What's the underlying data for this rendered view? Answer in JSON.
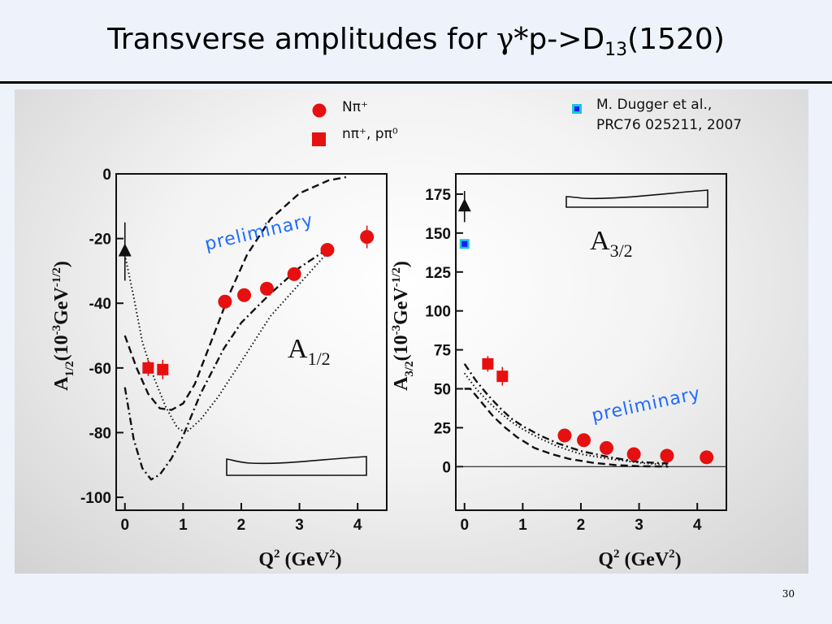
{
  "slide": {
    "title_prefix": "Transverse amplitudes for ",
    "title_gamma": "γ*",
    "title_mid": "p->D",
    "title_sub": "13",
    "title_suffix": "(1520)",
    "page_number": "30"
  },
  "legend": {
    "circle_label": "Nπ⁺",
    "square_label": "nπ⁺, pπ⁰",
    "ref_line1": "M. Dugger et al.,",
    "ref_line2": "PRC76 025211, 2007"
  },
  "colors": {
    "data_red": "#e61010",
    "photopoint_blue": "#1a1aff",
    "photopoint_cyan": "#19c8d8",
    "preliminary_blue": "#1f6bff"
  },
  "chart_data": [
    {
      "type": "scatter",
      "panel": "left",
      "amplitude_label": "A1/2",
      "ylabel": "A1/2(10^-3GeV^-1/2)",
      "xlabel": "Q2 (GeV2)",
      "xlim": [
        -0.15,
        4.5
      ],
      "ylim": [
        -104,
        0
      ],
      "xticks": [
        0,
        1,
        2,
        3,
        4
      ],
      "yticks": [
        0,
        -20,
        -40,
        -60,
        -80,
        -100
      ],
      "annotation": "preliminary",
      "series": [
        {
          "name": "Nπ⁺",
          "marker": "circle",
          "x": [
            1.72,
            2.05,
            2.44,
            2.91,
            3.48,
            4.16
          ],
          "y": [
            -39.5,
            -37.5,
            -35.5,
            -31,
            -23.5,
            -19.5
          ],
          "err": [
            0,
            0,
            0,
            0,
            0,
            3.5
          ]
        },
        {
          "name": "nπ⁺, pπ⁰",
          "marker": "square",
          "x": [
            0.4,
            0.65
          ],
          "y": [
            -60,
            -60.5
          ],
          "err": [
            2.5,
            3
          ]
        },
        {
          "marker": "triangle",
          "x": [
            0.0
          ],
          "y": [
            -24
          ],
          "err": [
            9
          ]
        }
      ],
      "curves": [
        {
          "style": "dashed",
          "x": [
            0,
            0.2,
            0.4,
            0.6,
            0.8,
            1.0,
            1.2,
            1.5,
            1.8,
            2.1,
            2.5,
            3.0,
            3.5,
            3.8
          ],
          "y": [
            -50,
            -60,
            -68,
            -72.5,
            -73,
            -71,
            -65,
            -51,
            -37,
            -25,
            -14,
            -6,
            -2,
            -1
          ]
        },
        {
          "style": "dashdot",
          "x": [
            0,
            0.15,
            0.3,
            0.45,
            0.6,
            0.8,
            1.0,
            1.3,
            1.7,
            2.0,
            2.5,
            3.0,
            3.5
          ],
          "y": [
            -66,
            -82,
            -91,
            -94.5,
            -93,
            -88,
            -81,
            -68,
            -54,
            -46,
            -37,
            -29,
            -23
          ]
        },
        {
          "style": "dotted",
          "x": [
            0,
            0.15,
            0.3,
            0.5,
            0.7,
            0.9,
            1.05,
            1.3,
            1.6,
            2.0,
            2.5,
            3.0,
            3.5
          ],
          "y": [
            -25,
            -38,
            -52,
            -63,
            -72,
            -78.5,
            -80,
            -76,
            -69,
            -58,
            -44,
            -34,
            -24
          ]
        }
      ]
    },
    {
      "type": "scatter",
      "panel": "right",
      "amplitude_label": "A3/2",
      "ylabel": "A3/2(10^-3GeV^-1/2)",
      "xlabel": "Q2 (GeV2)",
      "xlim": [
        -0.15,
        4.5
      ],
      "ylim": [
        -28,
        188
      ],
      "xticks": [
        0,
        1,
        2,
        3,
        4
      ],
      "yticks": [
        0,
        25,
        50,
        75,
        100,
        125,
        150,
        175
      ],
      "annotation": "preliminary",
      "series": [
        {
          "name": "Nπ⁺",
          "marker": "circle",
          "x": [
            1.72,
            2.05,
            2.44,
            2.91,
            3.48,
            4.16
          ],
          "y": [
            20,
            17,
            12,
            8,
            7,
            6
          ]
        },
        {
          "name": "nπ⁺, pπ⁰",
          "marker": "square",
          "x": [
            0.4,
            0.65
          ],
          "y": [
            66,
            58
          ],
          "err": [
            5,
            6
          ]
        },
        {
          "name": "M. Dugger et al., PRC76 025211, 2007",
          "marker": "square-blue",
          "x": [
            0.0
          ],
          "y": [
            143
          ]
        },
        {
          "marker": "triangle",
          "x": [
            0.0
          ],
          "y": [
            167
          ],
          "err": [
            10
          ]
        }
      ],
      "curves": [
        {
          "style": "dashdot",
          "x": [
            0,
            0.2,
            0.4,
            0.6,
            0.8,
            1.0,
            1.3,
            1.6,
            2.0,
            2.5,
            3.0,
            3.5
          ],
          "y": [
            66,
            55,
            46,
            38,
            31,
            26,
            20,
            15,
            10,
            6,
            3,
            2
          ]
        },
        {
          "style": "dotted",
          "x": [
            0,
            0.2,
            0.4,
            0.6,
            0.8,
            1.0,
            1.3,
            1.6,
            2.0,
            2.5,
            3.0,
            3.5
          ],
          "y": [
            60,
            50,
            42,
            35,
            29,
            24,
            18,
            13,
            8,
            5,
            2.5,
            1
          ]
        },
        {
          "style": "dashed",
          "x": [
            0,
            0.1,
            0.3,
            0.5,
            0.7,
            0.9,
            1.2,
            1.5,
            1.8,
            2.2,
            2.6,
            3.0,
            3.5
          ],
          "y": [
            50,
            50,
            41,
            32,
            25,
            19,
            12,
            8,
            5,
            2.5,
            1,
            0.3,
            0
          ]
        }
      ]
    }
  ]
}
